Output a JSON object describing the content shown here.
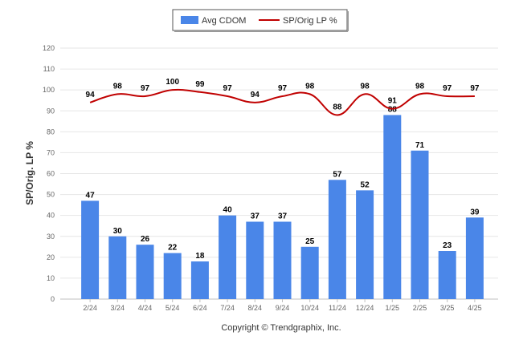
{
  "chart_data": {
    "type": "bar",
    "categories": [
      "2/24",
      "3/24",
      "4/24",
      "5/24",
      "6/24",
      "7/24",
      "8/24",
      "9/24",
      "10/24",
      "11/24",
      "12/24",
      "1/25",
      "2/25",
      "3/25",
      "4/25"
    ],
    "series": [
      {
        "name": "Avg CDOM",
        "type": "bar",
        "values": [
          47,
          30,
          26,
          22,
          18,
          40,
          37,
          37,
          25,
          57,
          52,
          88,
          71,
          23,
          39
        ]
      },
      {
        "name": "SP/Orig LP %",
        "type": "line",
        "values": [
          94,
          98,
          97,
          100,
          99,
          97,
          94,
          97,
          98,
          88,
          98,
          91,
          98,
          97,
          97
        ]
      }
    ],
    "ylabel": "SP/Orig. LP %",
    "xlabel": "",
    "ylim": [
      0,
      120
    ],
    "yticks": [
      0,
      10,
      20,
      30,
      40,
      50,
      60,
      70,
      80,
      90,
      100,
      110,
      120
    ],
    "grid": true,
    "legend_position": "top-center",
    "colors": {
      "bar": "#4a86e8",
      "line": "#c00000"
    }
  },
  "footer": {
    "copyright": "Copyright © Trendgraphix, Inc."
  }
}
